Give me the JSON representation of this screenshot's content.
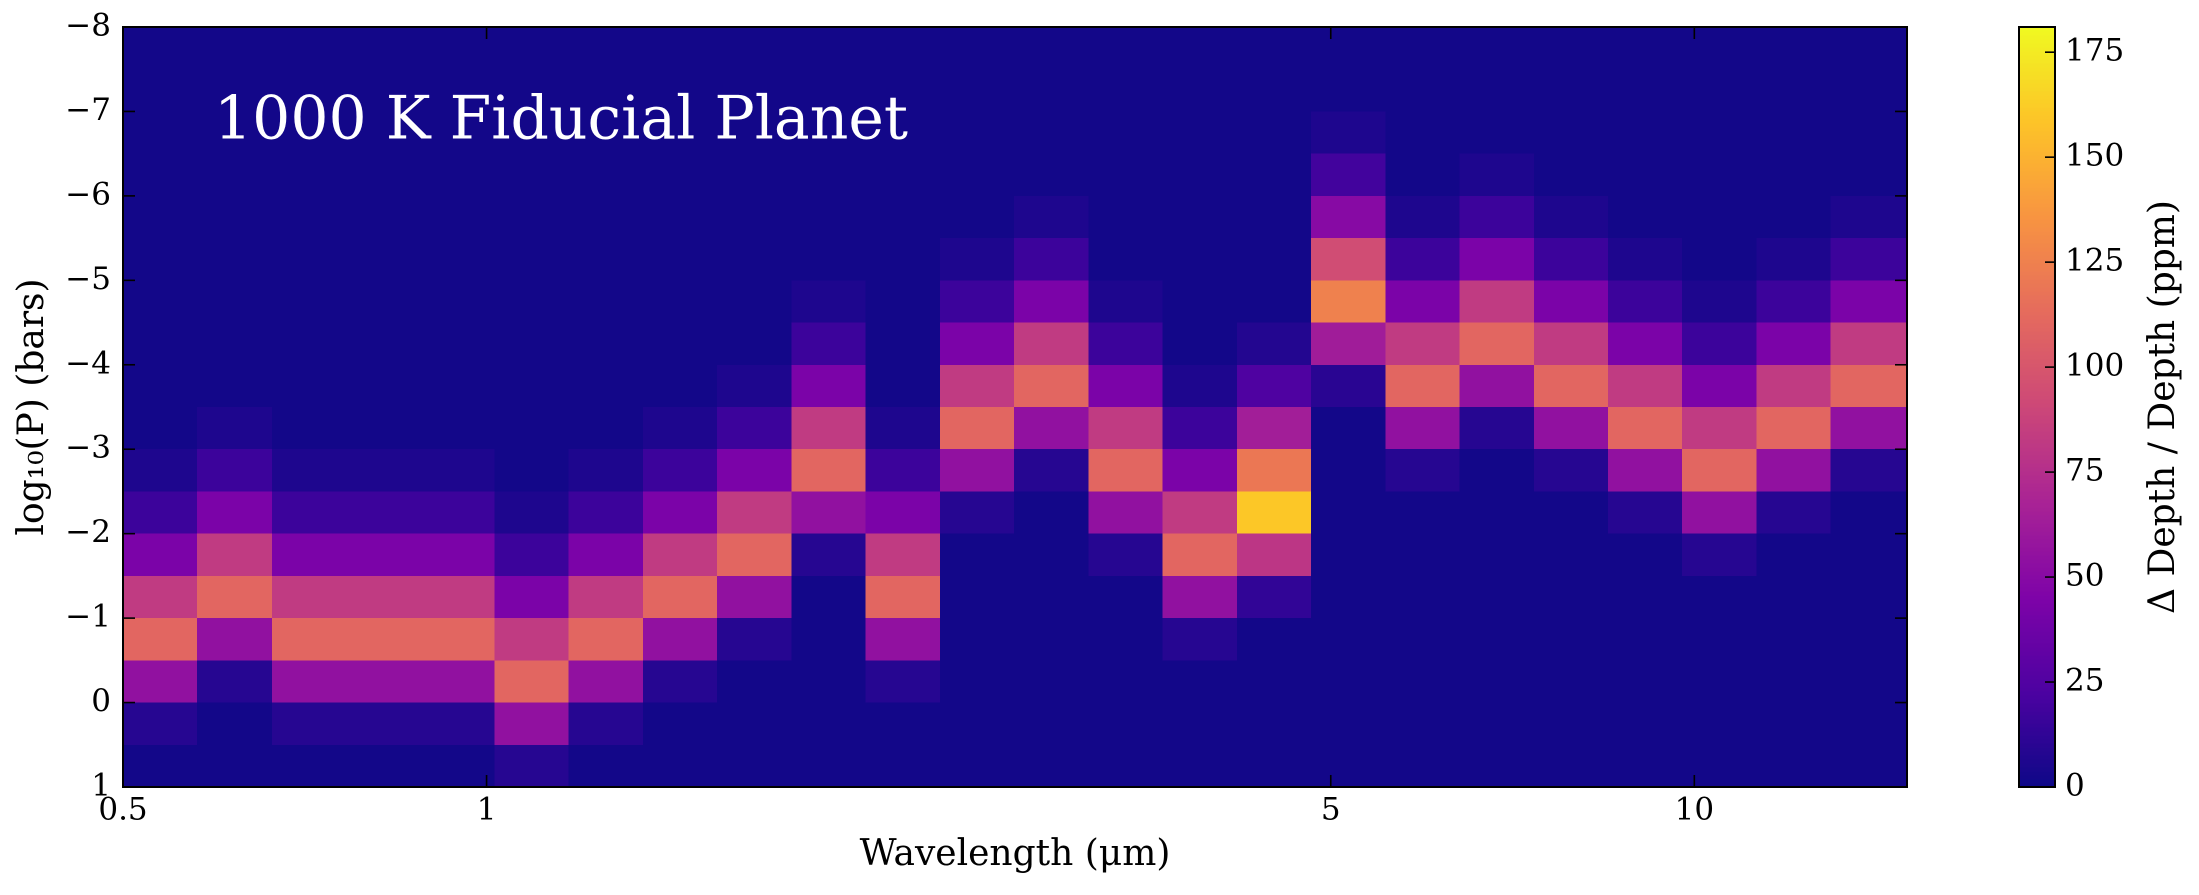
{
  "chart_data": {
    "type": "heatmap",
    "title": "1000 K Fiducial Planet",
    "x_label": "Wavelength (μm)",
    "y_label": "log₁₀(P) (bars)",
    "colorbar_label": "Δ Depth / Depth (ppm)",
    "colormap": "plasma",
    "xscale": "log",
    "xlim": [
      0.5,
      15
    ],
    "xticks": [
      0.5,
      1,
      5,
      10
    ],
    "ylim": [
      1,
      -8
    ],
    "yticks": [
      {
        "value": -8,
        "label": "−8"
      },
      {
        "value": -7,
        "label": "−7"
      },
      {
        "value": -6,
        "label": "−6"
      },
      {
        "value": -5,
        "label": "−5"
      },
      {
        "value": -4,
        "label": "−4"
      },
      {
        "value": -3,
        "label": "−3"
      },
      {
        "value": -2,
        "label": "−2"
      },
      {
        "value": -1,
        "label": "−1"
      },
      0,
      1
    ],
    "zlim": [
      0,
      181
    ],
    "zticks": [
      0,
      25,
      50,
      75,
      100,
      125,
      150,
      175
    ],
    "xbins": [
      0.5,
      0.576,
      0.664,
      0.765,
      0.881,
      1.015,
      1.169,
      1.347,
      1.552,
      1.788,
      2.06,
      2.373,
      2.734,
      3.15,
      3.629,
      4.181,
      4.816,
      5.548,
      6.392,
      7.363,
      8.483,
      9.772,
      11.26,
      12.97,
      15
    ],
    "ybins": [
      -8,
      -7.5,
      -7,
      -6.5,
      -6,
      -5.5,
      -5,
      -4.5,
      -4,
      -3.5,
      -3,
      -2.5,
      -2,
      -1.5,
      -1,
      -0.5,
      0,
      0.5,
      1
    ],
    "z": [
      [
        2,
        2,
        2,
        2,
        2,
        2,
        2,
        2,
        2,
        2,
        2,
        2,
        2,
        2,
        2,
        2,
        2,
        2,
        2,
        2,
        2,
        2,
        2,
        2
      ],
      [
        2,
        2,
        2,
        2,
        2,
        2,
        2,
        2,
        2,
        2,
        2,
        2,
        2,
        2,
        2,
        2,
        2,
        2,
        2,
        2,
        2,
        2,
        2,
        2
      ],
      [
        2,
        2,
        2,
        2,
        2,
        2,
        2,
        2,
        2,
        2,
        2,
        2,
        2,
        2,
        2,
        2,
        6,
        2,
        2,
        2,
        2,
        2,
        2,
        2
      ],
      [
        2,
        2,
        2,
        2,
        2,
        2,
        2,
        2,
        2,
        2,
        2,
        2,
        2,
        2,
        2,
        2,
        19,
        2,
        6,
        2,
        2,
        2,
        2,
        2
      ],
      [
        2,
        2,
        2,
        2,
        2,
        2,
        2,
        2,
        2,
        2,
        2,
        2,
        6,
        2,
        2,
        2,
        50,
        6,
        17,
        6,
        2,
        2,
        2,
        6
      ],
      [
        2,
        2,
        2,
        2,
        2,
        2,
        2,
        2,
        2,
        2,
        2,
        6,
        17,
        2,
        2,
        2,
        94,
        17,
        44,
        17,
        6,
        2,
        6,
        17
      ],
      [
        2,
        2,
        2,
        2,
        2,
        2,
        2,
        2,
        2,
        6,
        2,
        17,
        44,
        6,
        2,
        2,
        125,
        44,
        83,
        44,
        17,
        6,
        17,
        44
      ],
      [
        2,
        2,
        2,
        2,
        2,
        2,
        2,
        2,
        2,
        17,
        2,
        44,
        83,
        17,
        2,
        8,
        63,
        83,
        110,
        83,
        44,
        17,
        44,
        83
      ],
      [
        2,
        2,
        2,
        2,
        2,
        2,
        2,
        2,
        6,
        44,
        2,
        83,
        110,
        44,
        6,
        24,
        10,
        110,
        55,
        110,
        83,
        44,
        83,
        110
      ],
      [
        2,
        6,
        2,
        2,
        2,
        2,
        2,
        6,
        17,
        83,
        6,
        110,
        55,
        83,
        17,
        64,
        2,
        55,
        9,
        55,
        110,
        83,
        110,
        55
      ],
      [
        6,
        17,
        6,
        6,
        6,
        2,
        6,
        17,
        44,
        110,
        17,
        55,
        9,
        110,
        44,
        120,
        2,
        9,
        2,
        9,
        55,
        110,
        55,
        9
      ],
      [
        17,
        44,
        17,
        17,
        17,
        6,
        17,
        44,
        83,
        55,
        44,
        9,
        2,
        55,
        83,
        160,
        2,
        2,
        2,
        2,
        9,
        55,
        9,
        2
      ],
      [
        44,
        83,
        44,
        44,
        44,
        17,
        44,
        83,
        110,
        9,
        83,
        2,
        2,
        9,
        110,
        80,
        2,
        2,
        2,
        2,
        2,
        9,
        2,
        2
      ],
      [
        83,
        110,
        83,
        83,
        83,
        44,
        83,
        110,
        55,
        2,
        110,
        2,
        2,
        2,
        55,
        13,
        2,
        2,
        2,
        2,
        2,
        2,
        2,
        2
      ],
      [
        110,
        55,
        110,
        110,
        110,
        83,
        110,
        55,
        9,
        2,
        55,
        2,
        2,
        2,
        9,
        2,
        2,
        2,
        2,
        2,
        2,
        2,
        2,
        2
      ],
      [
        55,
        9,
        55,
        55,
        55,
        110,
        55,
        9,
        2,
        2,
        9,
        2,
        2,
        2,
        2,
        2,
        2,
        2,
        2,
        2,
        2,
        2,
        2,
        2
      ],
      [
        9,
        2,
        9,
        9,
        9,
        55,
        9,
        2,
        2,
        2,
        2,
        2,
        2,
        2,
        2,
        2,
        2,
        2,
        2,
        2,
        2,
        2,
        2,
        2
      ],
      [
        2,
        2,
        2,
        2,
        2,
        9,
        2,
        2,
        2,
        2,
        2,
        2,
        2,
        2,
        2,
        2,
        2,
        2,
        2,
        2,
        2,
        2,
        2,
        2
      ]
    ]
  }
}
